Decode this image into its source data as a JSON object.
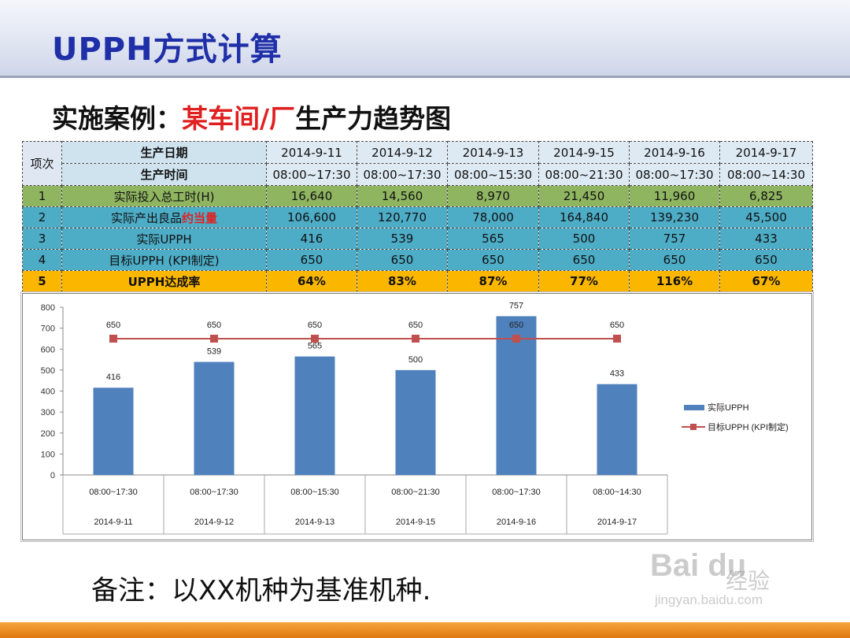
{
  "title": "UPPH方式计算",
  "subtitle": {
    "prefix": "实施案例：",
    "highlight": "某车间/厂",
    "suffix": "生产力趋势图"
  },
  "table": {
    "idx_header": "项次",
    "date_label": "生产日期",
    "time_label": "生产时间",
    "dates": [
      "2014-9-11",
      "2014-9-12",
      "2014-9-13",
      "2014-9-15",
      "2014-9-16",
      "2014-9-17"
    ],
    "times": [
      "08:00~17:30",
      "08:00~17:30",
      "08:00~15:30",
      "08:00~21:30",
      "08:00~17:30",
      "08:00~14:30"
    ],
    "rows": [
      {
        "idx": "1",
        "label": "实际投入总工时(H)",
        "values": [
          "16,640",
          "14,560",
          "8,970",
          "21,450",
          "11,960",
          "6,825"
        ]
      },
      {
        "idx": "2",
        "label": "实际产出良品",
        "label_highlight": "约当量",
        "values": [
          "106,600",
          "120,770",
          "78,000",
          "164,840",
          "139,230",
          "45,500"
        ]
      },
      {
        "idx": "3",
        "label": "实际UPPH",
        "values": [
          "416",
          "539",
          "565",
          "500",
          "757",
          "433"
        ]
      },
      {
        "idx": "4",
        "label": "目标UPPH (KPI制定)",
        "values": [
          "650",
          "650",
          "650",
          "650",
          "650",
          "650"
        ]
      },
      {
        "idx": "5",
        "label": "UPPH达成率",
        "values": [
          "64%",
          "83%",
          "87%",
          "77%",
          "116%",
          "67%"
        ]
      }
    ]
  },
  "chart_data": {
    "type": "bar",
    "categories": [
      "08:00~17:30 2014-9-11",
      "08:00~17:30 2014-9-12",
      "08:00~15:30 2014-9-13",
      "08:00~21:30 2014-9-15",
      "08:00~17:30 2014-9-16",
      "08:00~14:30 2014-9-17"
    ],
    "category_times": [
      "08:00~17:30",
      "08:00~17:30",
      "08:00~15:30",
      "08:00~21:30",
      "08:00~17:30",
      "08:00~14:30"
    ],
    "category_dates": [
      "2014-9-11",
      "2014-9-12",
      "2014-9-13",
      "2014-9-15",
      "2014-9-16",
      "2014-9-17"
    ],
    "series": [
      {
        "name": "实际UPPH",
        "type": "bar",
        "color": "#4f81bd",
        "values": [
          416,
          539,
          565,
          500,
          757,
          433
        ]
      },
      {
        "name": "目标UPPH (KPI制定)",
        "type": "line",
        "color": "#c0504d",
        "values": [
          650,
          650,
          650,
          650,
          650,
          650
        ]
      }
    ],
    "ylim": [
      0,
      800
    ],
    "yticks": [
      0,
      100,
      200,
      300,
      400,
      500,
      600,
      700,
      800
    ],
    "grid": false,
    "legend_position": "right"
  },
  "note": "备注：以XX机种为基准机种.",
  "watermark": {
    "logo": "Bai du",
    "text": "经验",
    "url": "jingyan.baidu.com"
  }
}
